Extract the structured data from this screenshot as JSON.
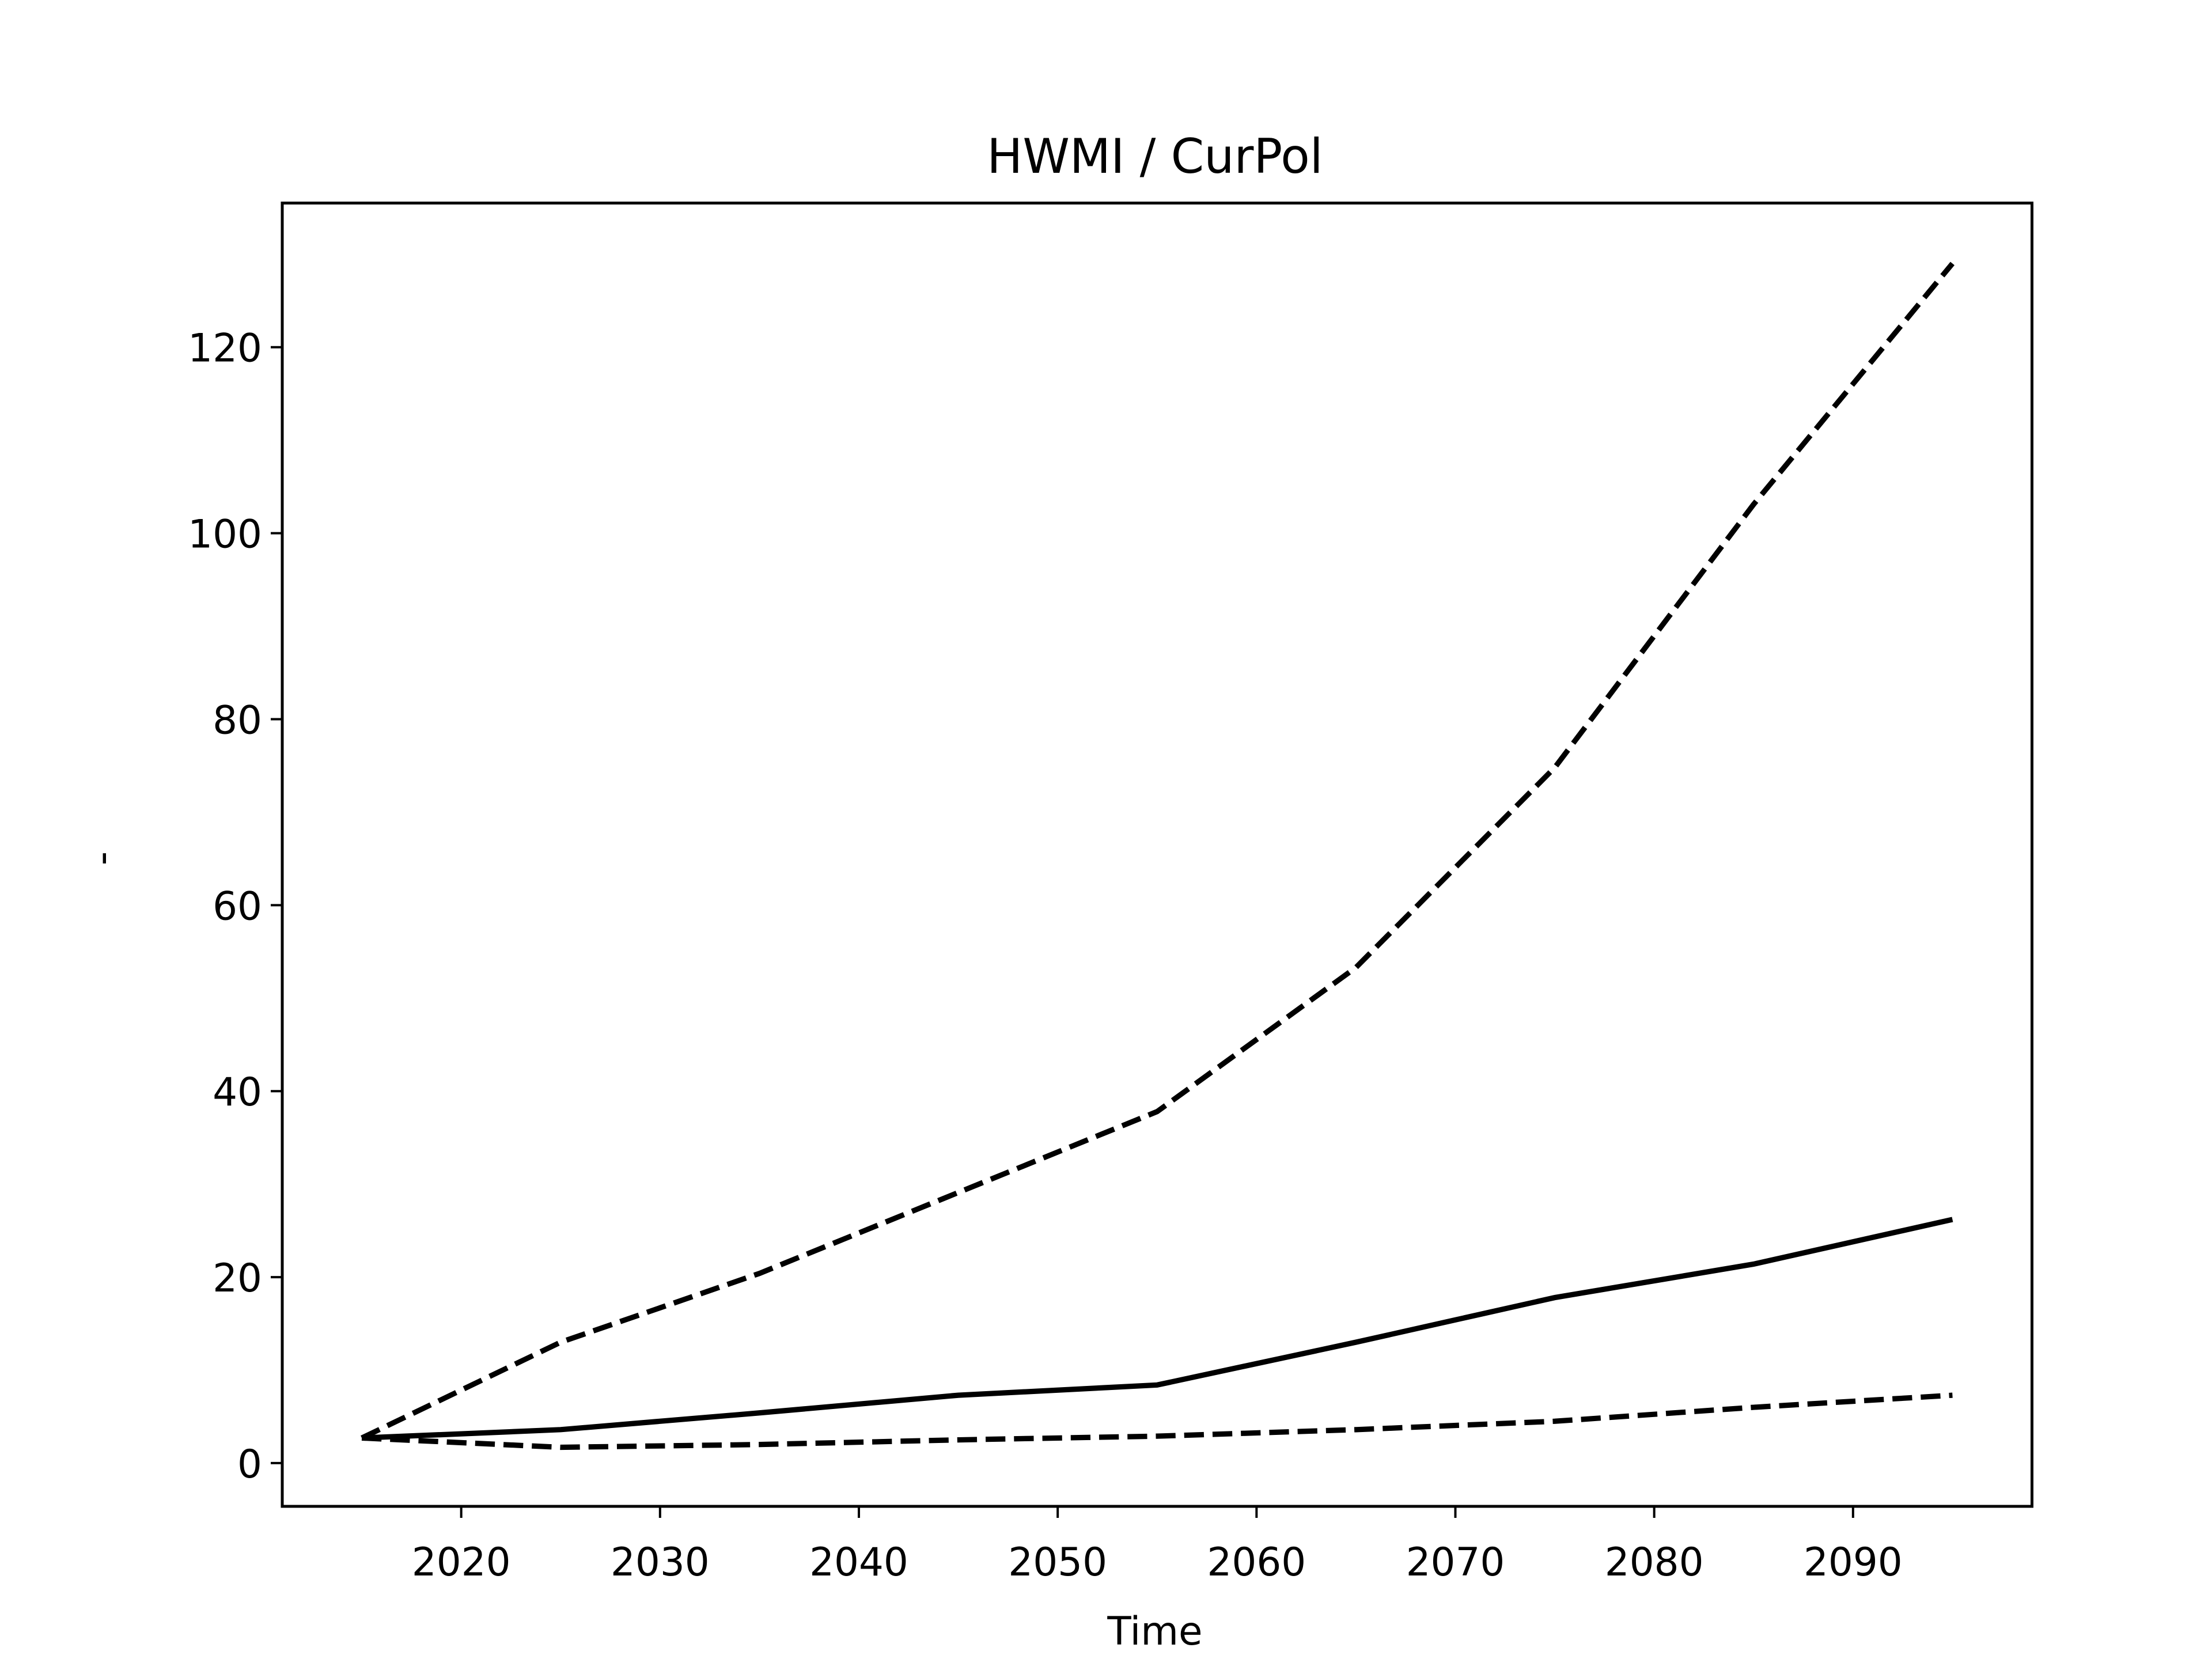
{
  "chart_data": {
    "type": "line",
    "title": "HWMI / CurPol",
    "x_label": "Time",
    "y_label": "-",
    "x": [
      2015,
      2025,
      2035,
      2045,
      2055,
      2065,
      2075,
      2085,
      2095
    ],
    "series": [
      {
        "color": "#000000",
        "dashed": true,
        "values": [
          2.7,
          13.0,
          20.4,
          29.1,
          37.8,
          53.3,
          74.8,
          103.1,
          129.0
        ]
      },
      {
        "color": "#000000",
        "dashed": false,
        "values": [
          2.7,
          3.6,
          5.4,
          7.3,
          8.4,
          13.0,
          17.8,
          21.4,
          26.2
        ]
      },
      {
        "color": "#000000",
        "dashed": true,
        "values": [
          2.7,
          1.7,
          2.0,
          2.5,
          2.9,
          3.6,
          4.5,
          6.0,
          7.3
        ]
      }
    ],
    "xlim": [
      2011,
      2099
    ],
    "xticks": [
      2020,
      2030,
      2040,
      2050,
      2060,
      2070,
      2080,
      2090
    ],
    "ylim": [
      -4.65,
      135.5
    ],
    "yticks": [
      0,
      20,
      40,
      60,
      80,
      100,
      120
    ],
    "grid": false
  }
}
